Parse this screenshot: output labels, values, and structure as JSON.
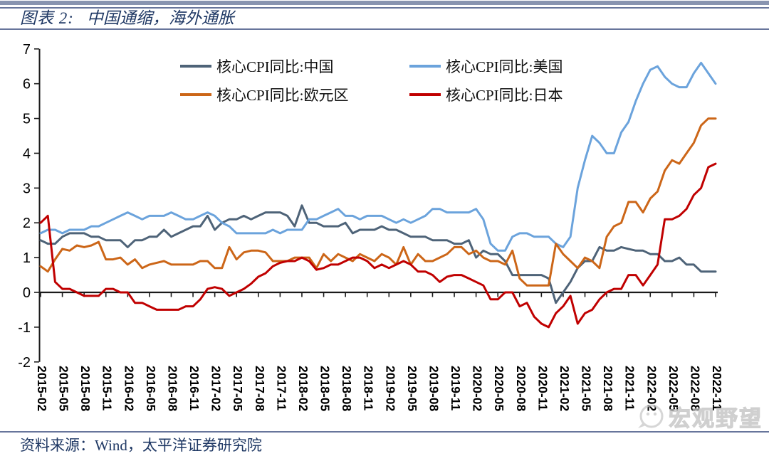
{
  "header": {
    "label": "图表 2:",
    "title": "中国通缩，海外通胀"
  },
  "footer": {
    "source": "资料来源：Wind，太平洋证券研究院"
  },
  "watermark": {
    "text": "宏观野望",
    "icon": "wechat-chat-bubble-icon"
  },
  "colors": {
    "accent_bar": "#8894B0",
    "rule_line": "#67759B",
    "title_text": "#1F3864",
    "source_text": "#1F3864",
    "axis": "#1a1a1a",
    "watermark_gray": "#c9c9c9"
  },
  "chart_data": {
    "type": "line",
    "title": "中国通缩，海外通胀",
    "xlabel": "",
    "ylabel": "",
    "ylim": [
      -2,
      7
    ],
    "y_ticks": [
      7,
      6,
      5,
      4,
      3,
      2,
      1,
      0,
      -1,
      -2
    ],
    "grid": false,
    "legend_position": "top-inside-two-columns",
    "x_monthly_start": "2015-02",
    "x_monthly_end": "2022-11",
    "x_tick_every_months": 3,
    "x_tick_labels": [
      "2015-02",
      "2015-05",
      "2015-08",
      "2015-11",
      "2016-02",
      "2016-05",
      "2016-08",
      "2016-11",
      "2017-02",
      "2017-05",
      "2017-08",
      "2017-11",
      "2018-02",
      "2018-05",
      "2018-08",
      "2018-11",
      "2019-02",
      "2019-05",
      "2019-08",
      "2019-11",
      "2020-02",
      "2020-05",
      "2020-08",
      "2020-11",
      "2021-02",
      "2021-05",
      "2021-08",
      "2021-11",
      "2022-02",
      "2022-05",
      "2022-08",
      "2022-11"
    ],
    "series": [
      {
        "name": "核心CPI同比:中国",
        "color": "#4E6378",
        "values": [
          1.5,
          1.4,
          1.4,
          1.6,
          1.7,
          1.7,
          1.7,
          1.6,
          1.6,
          1.5,
          1.5,
          1.5,
          1.3,
          1.5,
          1.5,
          1.6,
          1.6,
          1.8,
          1.6,
          1.7,
          1.8,
          1.9,
          1.9,
          2.2,
          1.8,
          2.0,
          2.1,
          2.1,
          2.2,
          2.1,
          2.2,
          2.3,
          2.3,
          2.3,
          2.2,
          1.9,
          2.5,
          2.0,
          2.0,
          1.9,
          1.9,
          1.9,
          2.0,
          1.7,
          1.8,
          1.8,
          1.8,
          1.9,
          1.8,
          1.8,
          1.7,
          1.6,
          1.6,
          1.6,
          1.5,
          1.5,
          1.5,
          1.4,
          1.4,
          1.5,
          1.0,
          1.2,
          1.1,
          1.1,
          0.9,
          0.5,
          0.5,
          0.5,
          0.5,
          0.5,
          0.4,
          -0.3,
          0.0,
          0.3,
          0.7,
          0.9,
          0.9,
          1.3,
          1.2,
          1.2,
          1.3,
          1.25,
          1.2,
          1.2,
          1.1,
          1.1,
          0.9,
          0.9,
          1.0,
          0.8,
          0.8,
          0.6,
          0.6,
          0.6
        ]
      },
      {
        "name": "核心CPI同比:美国",
        "color": "#6BA3DC",
        "values": [
          1.7,
          1.8,
          1.8,
          1.7,
          1.8,
          1.8,
          1.8,
          1.9,
          1.9,
          2.0,
          2.1,
          2.2,
          2.3,
          2.2,
          2.1,
          2.2,
          2.2,
          2.2,
          2.3,
          2.2,
          2.1,
          2.1,
          2.2,
          2.3,
          2.2,
          2.0,
          1.9,
          1.7,
          1.7,
          1.7,
          1.7,
          1.7,
          1.8,
          1.7,
          1.8,
          1.8,
          1.8,
          2.1,
          2.1,
          2.2,
          2.3,
          2.4,
          2.2,
          2.2,
          2.1,
          2.2,
          2.2,
          2.2,
          2.1,
          2.0,
          2.1,
          2.0,
          2.1,
          2.2,
          2.4,
          2.4,
          2.3,
          2.3,
          2.3,
          2.3,
          2.4,
          2.1,
          1.4,
          1.2,
          1.2,
          1.6,
          1.7,
          1.7,
          1.6,
          1.6,
          1.6,
          1.4,
          1.3,
          1.6,
          3.0,
          3.8,
          4.5,
          4.3,
          4.0,
          4.0,
          4.6,
          4.9,
          5.5,
          6.0,
          6.4,
          6.5,
          6.2,
          6.0,
          5.9,
          5.9,
          6.3,
          6.6,
          6.3,
          6.0
        ]
      },
      {
        "name": "核心CPI同比:欧元区",
        "color": "#CC6618",
        "values": [
          0.75,
          0.6,
          0.95,
          1.25,
          1.2,
          1.35,
          1.3,
          1.35,
          1.45,
          0.95,
          0.95,
          1.0,
          0.8,
          0.95,
          0.7,
          0.8,
          0.85,
          0.9,
          0.8,
          0.8,
          0.8,
          0.8,
          0.9,
          0.9,
          0.7,
          0.7,
          1.3,
          0.95,
          1.15,
          1.2,
          1.2,
          1.15,
          0.9,
          0.9,
          0.9,
          1.0,
          1.0,
          1.0,
          0.7,
          1.1,
          0.9,
          1.1,
          1.0,
          0.9,
          1.1,
          1.0,
          0.9,
          1.1,
          1.0,
          0.8,
          1.3,
          0.8,
          1.1,
          0.9,
          0.9,
          1.0,
          1.1,
          1.3,
          1.3,
          1.1,
          1.2,
          1.0,
          0.9,
          0.9,
          0.8,
          1.2,
          0.4,
          0.2,
          0.2,
          0.2,
          0.2,
          1.4,
          1.1,
          0.9,
          0.7,
          1.0,
          0.9,
          0.7,
          1.6,
          1.9,
          2.0,
          2.6,
          2.6,
          2.3,
          2.7,
          2.9,
          3.5,
          3.8,
          3.7,
          4.0,
          4.3,
          4.8,
          5.0,
          5.0
        ]
      },
      {
        "name": "核心CPI同比:日本",
        "color": "#C00000",
        "values": [
          2.0,
          2.2,
          0.3,
          0.1,
          0.1,
          0.0,
          -0.1,
          -0.1,
          -0.1,
          0.1,
          0.1,
          0.0,
          0.0,
          -0.3,
          -0.3,
          -0.4,
          -0.5,
          -0.5,
          -0.5,
          -0.5,
          -0.4,
          -0.4,
          -0.2,
          0.1,
          0.15,
          0.1,
          -0.1,
          0.0,
          0.1,
          0.25,
          0.45,
          0.55,
          0.75,
          0.85,
          0.9,
          0.9,
          1.0,
          0.9,
          0.65,
          0.7,
          0.8,
          0.8,
          0.9,
          1.0,
          1.0,
          0.9,
          0.7,
          0.8,
          0.7,
          0.8,
          0.9,
          0.8,
          0.6,
          0.6,
          0.5,
          0.3,
          0.45,
          0.5,
          0.5,
          0.4,
          0.3,
          0.2,
          -0.2,
          -0.2,
          0.0,
          0.0,
          -0.4,
          -0.3,
          -0.7,
          -0.9,
          -1.0,
          -0.6,
          -0.4,
          -0.1,
          -0.9,
          -0.6,
          -0.5,
          -0.2,
          0.0,
          0.1,
          0.1,
          0.5,
          0.5,
          0.2,
          0.5,
          0.8,
          2.1,
          2.1,
          2.2,
          2.4,
          2.8,
          3.0,
          3.6,
          3.7
        ]
      }
    ]
  }
}
